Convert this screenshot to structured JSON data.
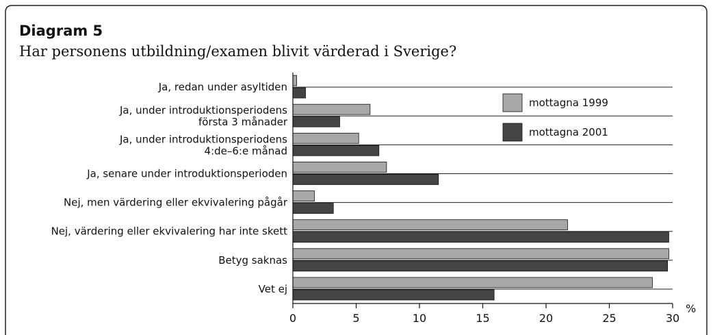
{
  "chart_data": {
    "type": "hbar",
    "title": "Diagram 5",
    "subtitle": "Har personens utbildning/examen blivit värderad i Sverige?",
    "x_label": "%",
    "categories": [
      "Ja, redan under asyltiden",
      "Ja, under introduktionsperiodens\nförsta 3 månader",
      "Ja, under introduktionsperiodens\n4:de–6:e månad",
      "Ja, senare under introduktionsperioden",
      "Nej, men värdering eller ekvivalering pågår",
      "Nej, värdering eller ekvivalering har inte skett",
      "Betyg saknas",
      "Vet ej"
    ],
    "series": [
      {
        "name": "mottagna 1999",
        "color": "#a8a8a8",
        "values": [
          0.3,
          6.1,
          5.2,
          7.4,
          1.7,
          21.7,
          29.7,
          28.4
        ]
      },
      {
        "name": "mottagna 2001",
        "color": "#444444",
        "values": [
          1.0,
          3.7,
          6.8,
          11.5,
          3.2,
          29.7,
          29.6,
          15.9
        ]
      }
    ],
    "xlim": [
      0,
      30
    ],
    "xticks": [
      0,
      5,
      10,
      15,
      20,
      25,
      30
    ],
    "legend": "upper right"
  }
}
